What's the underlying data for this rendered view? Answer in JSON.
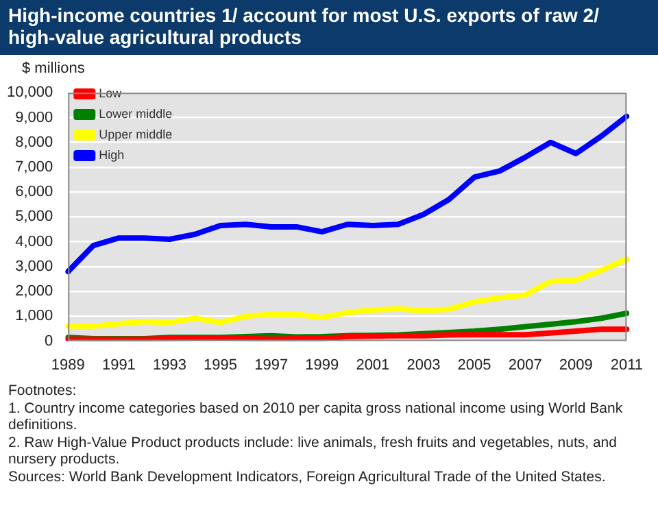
{
  "chart_data": {
    "type": "line",
    "title": "High-income countries 1/ account for most U.S. exports of raw 2/ high-value agricultural products",
    "ylabel": "$ millions",
    "categories": [
      "1989",
      null,
      "1991",
      null,
      "1993",
      null,
      "1995",
      null,
      "1997",
      null,
      "1999",
      null,
      "2001",
      null,
      "2003",
      null,
      "2005",
      null,
      "2007",
      null,
      "2009",
      null,
      "2011"
    ],
    "series": [
      {
        "name": "Low",
        "color": "#ff0000",
        "values": [
          80,
          80,
          70,
          80,
          100,
          120,
          120,
          110,
          80,
          100,
          100,
          180,
          200,
          220,
          220,
          250,
          260,
          260,
          260,
          330,
          400,
          480,
          480
        ]
      },
      {
        "name": "Lower middle",
        "color": "#008000",
        "values": [
          150,
          100,
          100,
          100,
          150,
          150,
          150,
          180,
          220,
          170,
          180,
          220,
          230,
          250,
          300,
          350,
          400,
          480,
          580,
          680,
          780,
          920,
          1120
        ]
      },
      {
        "name": "Upper middle",
        "color": "#ffff00",
        "values": [
          600,
          600,
          700,
          780,
          750,
          920,
          750,
          1000,
          1080,
          1080,
          950,
          1150,
          1250,
          1300,
          1230,
          1280,
          1580,
          1750,
          1850,
          2400,
          2450,
          2850,
          3300
        ]
      },
      {
        "name": "High",
        "color": "#0000ff",
        "values": [
          2800,
          3850,
          4150,
          4150,
          4100,
          4300,
          4650,
          4700,
          4600,
          4600,
          4400,
          4700,
          4650,
          4700,
          5100,
          5700,
          6600,
          6850,
          7400,
          8000,
          7550,
          8250,
          9050
        ]
      }
    ],
    "ylim": [
      0,
      10000
    ],
    "yticks": [
      {
        "value": 0,
        "label": "0"
      },
      {
        "value": 1000,
        "label": "1,000"
      },
      {
        "value": 2000,
        "label": "2,000"
      },
      {
        "value": 3000,
        "label": "3,000"
      },
      {
        "value": 4000,
        "label": "4,000"
      },
      {
        "value": 5000,
        "label": "5,000"
      },
      {
        "value": 6000,
        "label": "6,000"
      },
      {
        "value": 7000,
        "label": "7,000"
      },
      {
        "value": 8000,
        "label": "8,000"
      },
      {
        "value": 9000,
        "label": "9,000"
      },
      {
        "value": 10000,
        "label": "10,000"
      }
    ],
    "grid": "y",
    "legend": "top left",
    "marker": "none",
    "line_style": "solid",
    "annotations": [
      "Footnotes:",
      "1. Country income categories based on 2010 per capita gross national income using World Bank definitions.",
      "2. Raw High-Value Product products include: live animals, fresh fruits and vegetables, nuts, and nursery products.",
      "Sources: World Bank Development Indicators, Foreign Agricultural Trade of the United States."
    ]
  }
}
